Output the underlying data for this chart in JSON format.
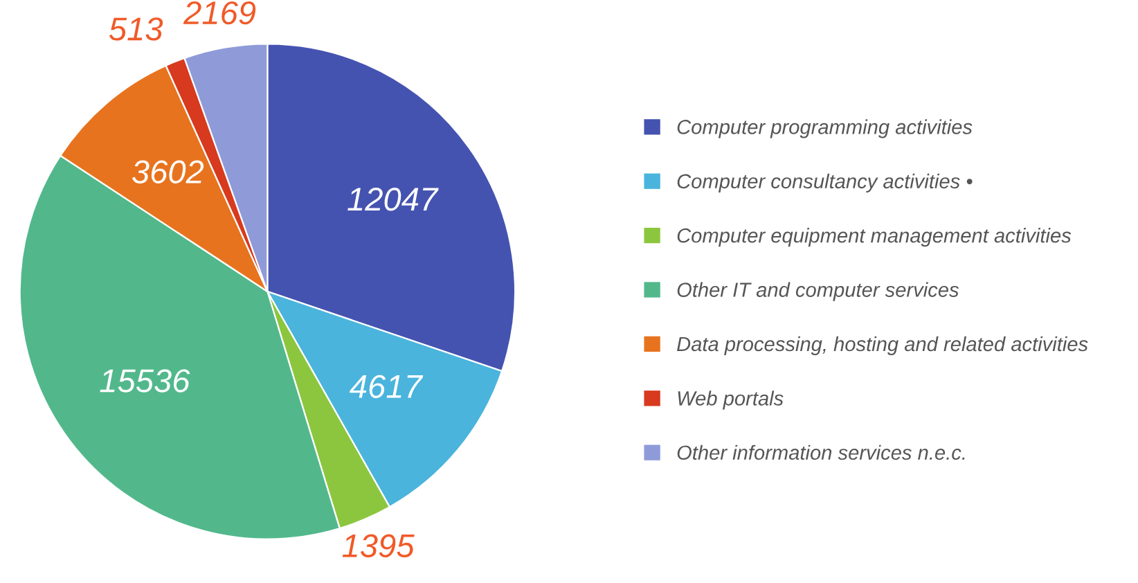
{
  "chart_data": {
    "type": "pie",
    "categories": [
      "Computer programming activities",
      "Computer consultancy activities •",
      "Computer equipment management activities",
      "Other IT and computer services",
      "Data processing, hosting and related activities",
      "Web portals",
      "Other information services n.e.c."
    ],
    "values": [
      12047,
      4617,
      1395,
      15536,
      3602,
      513,
      2169
    ],
    "colors": [
      "#4553b0",
      "#4ab4dc",
      "#8cc63f",
      "#52b88c",
      "#e8731e",
      "#d73a1e",
      "#8f9bd8"
    ],
    "data_labels": true,
    "legend": "right"
  }
}
